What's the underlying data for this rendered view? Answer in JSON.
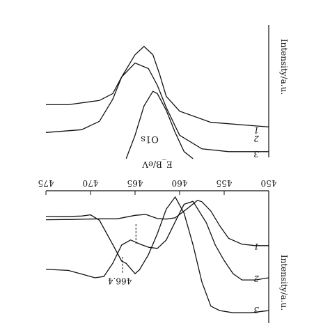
{
  "chart_data": [
    {
      "type": "line",
      "panel": "upper",
      "title": "",
      "peak_label": "O1s",
      "ylabel": "Intensity/a.u.",
      "x_ticks": [],
      "y_ticks": [],
      "series": [
        {
          "label": "1",
          "points": [
            [
              0,
              0.77
            ],
            [
              0.26,
              0.735
            ],
            [
              0.4,
              0.651
            ],
            [
              0.46,
              0.539
            ],
            [
              0.49,
              0.371
            ],
            [
              0.52,
              0.224
            ],
            [
              0.56,
              0.161
            ],
            [
              0.6,
              0.224
            ],
            [
              0.66,
              0.392
            ],
            [
              0.7,
              0.518
            ],
            [
              0.76,
              0.57
            ],
            [
              0.9,
              0.602
            ],
            [
              1,
              0.602
            ]
          ]
        },
        {
          "label": "2",
          "points": [
            [
              0,
              0.957
            ],
            [
              0.18,
              0.957
            ],
            [
              0.3,
              0.936
            ],
            [
              0.4,
              0.833
            ],
            [
              0.46,
              0.623
            ],
            [
              0.5,
              0.455
            ],
            [
              0.54,
              0.329
            ],
            [
              0.6,
              0.287
            ],
            [
              0.66,
              0.392
            ],
            [
              0.7,
              0.56
            ],
            [
              0.76,
              0.728
            ],
            [
              0.84,
              0.791
            ],
            [
              1,
              0.812
            ]
          ]
        },
        {
          "label": "3",
          "points": [
            [
              0.34,
              1.01
            ],
            [
              0.38,
              0.957
            ],
            [
              0.42,
              0.812
            ],
            [
              0.46,
              0.644
            ],
            [
              0.5,
              0.518
            ],
            [
              0.52,
              0.501
            ],
            [
              0.56,
              0.612
            ],
            [
              0.6,
              0.833
            ],
            [
              0.64,
              1.01
            ]
          ]
        }
      ]
    },
    {
      "type": "line",
      "panel": "lower",
      "title": "",
      "xlabel": "E_B/eV",
      "ylabel": "Intensity/a.u.",
      "x_ticks": [
        "450",
        "455",
        "460",
        "465",
        "470",
        "475"
      ],
      "xlim": [
        450,
        475
      ],
      "annotation": "466.4",
      "annotation_x": 466.4,
      "series": [
        {
          "label": "1",
          "points": [
            [
              450.0,
              0.415
            ],
            [
              451.5,
              0.415
            ],
            [
              453.0,
              0.404
            ],
            [
              454.5,
              0.36
            ],
            [
              455.5,
              0.265
            ],
            [
              456.5,
              0.153
            ],
            [
              457.5,
              0.083
            ],
            [
              458.0,
              0.072
            ],
            [
              459.0,
              0.128
            ],
            [
              460.5,
              0.205
            ],
            [
              461.5,
              0.214
            ],
            [
              462.5,
              0.21
            ],
            [
              463.8,
              0.179
            ],
            [
              465.0,
              0.186
            ],
            [
              467.0,
              0.212
            ],
            [
              469.0,
              0.212
            ],
            [
              472.0,
              0.217
            ],
            [
              475.0,
              0.219
            ]
          ]
        },
        {
          "label": "2",
          "points": [
            [
              450.0,
              0.658
            ],
            [
              451.5,
              0.674
            ],
            [
              453.0,
              0.674
            ],
            [
              454.0,
              0.627
            ],
            [
              455.0,
              0.528
            ],
            [
              456.0,
              0.41
            ],
            [
              457.0,
              0.242
            ],
            [
              458.5,
              0.08
            ],
            [
              459.5,
              0.102
            ],
            [
              460.5,
              0.235
            ],
            [
              461.5,
              0.372
            ],
            [
              462.5,
              0.436
            ],
            [
              463.5,
              0.427
            ],
            [
              464.5,
              0.402
            ],
            [
              465.5,
              0.372
            ],
            [
              466.5,
              0.41
            ],
            [
              467.5,
              0.548
            ],
            [
              468.5,
              0.648
            ],
            [
              469.5,
              0.658
            ],
            [
              470.5,
              0.639
            ],
            [
              472.5,
              0.602
            ],
            [
              475.0,
              0.594
            ]
          ]
        },
        {
          "label": "3",
          "points": [
            [
              450.0,
              0.906
            ],
            [
              452.0,
              0.922
            ],
            [
              454.0,
              0.922
            ],
            [
              455.5,
              0.906
            ],
            [
              456.5,
              0.872
            ],
            [
              457.5,
              0.69
            ],
            [
              458.5,
              0.408
            ],
            [
              459.5,
              0.17
            ],
            [
              460.5,
              0.047
            ],
            [
              461.5,
              0.139
            ],
            [
              462.5,
              0.325
            ],
            [
              463.5,
              0.483
            ],
            [
              464.5,
              0.597
            ],
            [
              465.0,
              0.627
            ],
            [
              466.0,
              0.549
            ],
            [
              466.5,
              0.532
            ],
            [
              467.5,
              0.407
            ],
            [
              469.0,
              0.223
            ],
            [
              470.0,
              0.182
            ],
            [
              471.0,
              0.191
            ],
            [
              473.0,
              0.196
            ],
            [
              475.0,
              0.194
            ]
          ]
        }
      ]
    }
  ]
}
